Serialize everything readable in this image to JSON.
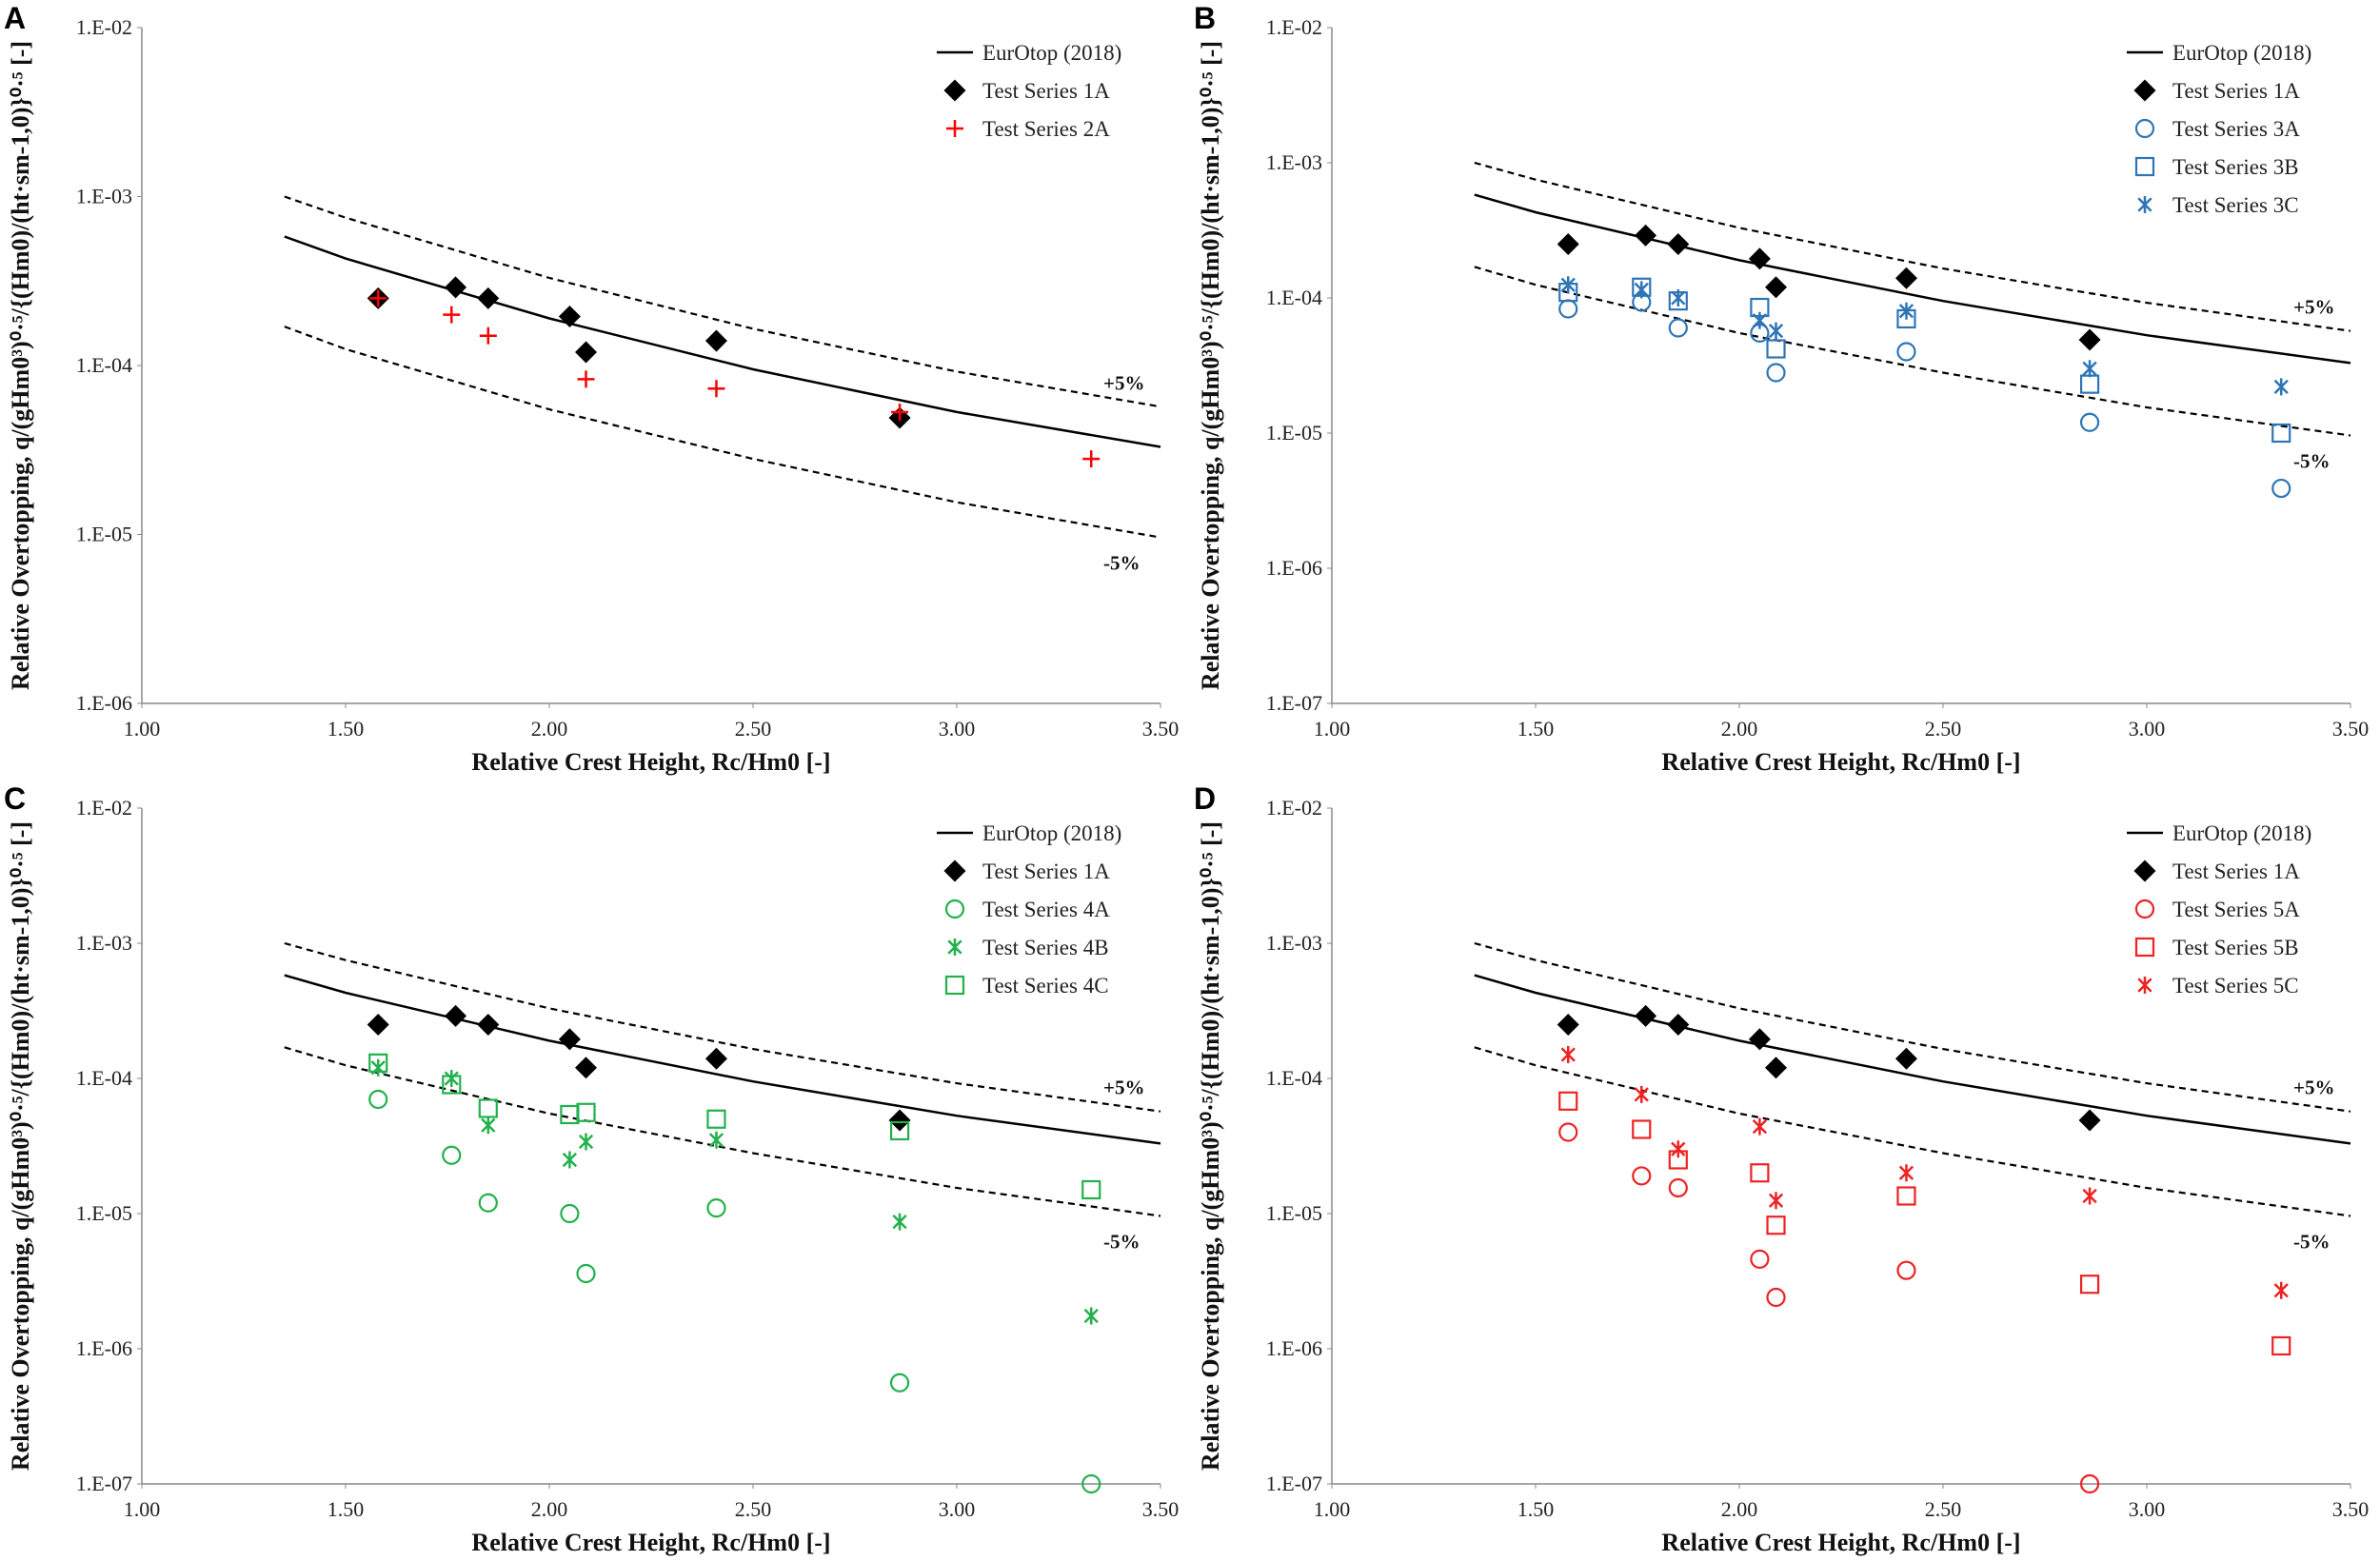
{
  "chart_data": [
    {
      "panel_label": "A",
      "type": "scatter",
      "log_y": true,
      "legend": "upper right",
      "x_label": "Relative Crest Height, Rc/Hm0 [-]",
      "y_label": "Relative Overtopping, q/(gHm0³)⁰·⁵/{(Hm0)/(ht·sm-1,0)}⁰·⁵ [-]",
      "xlim": [
        1.0,
        3.5
      ],
      "xticks": [
        {
          "value": 1.0,
          "label": "1.00"
        },
        {
          "value": 1.5,
          "label": "1.50"
        },
        {
          "value": 2.0,
          "label": "2.00"
        },
        {
          "value": 2.5,
          "label": "2.50"
        },
        {
          "value": 3.0,
          "label": "3.00"
        },
        {
          "value": 3.5,
          "label": "3.50"
        }
      ],
      "ylim": [
        1e-06,
        0.01
      ],
      "yticks": [
        {
          "value": 1e-06,
          "label": "1.E-06"
        },
        {
          "value": 1e-05,
          "label": "1.E-05"
        },
        {
          "value": 0.0001,
          "label": "1.E-04"
        },
        {
          "value": 0.001,
          "label": "1.E-03"
        },
        {
          "value": 0.01,
          "label": "1.E-02"
        }
      ],
      "series": [
        {
          "name": "EurOtop (2018)",
          "color": "#000000",
          "marker": "line",
          "x": [
            1.35,
            1.5,
            2.0,
            2.5,
            3.0,
            3.5
          ],
          "values": [
            0.00058,
            0.00043,
            0.00019,
            9.5e-05,
            5.3e-05,
            3.3e-05
          ]
        },
        {
          "name": "+5%",
          "color": "#000000",
          "marker": "dashed",
          "in_legend": false,
          "x": [
            1.35,
            1.5,
            2.0,
            2.5,
            3.0,
            3.5
          ],
          "values": [
            0.001,
            0.00075,
            0.00033,
            0.000165,
            9.2e-05,
            5.7e-05
          ]
        },
        {
          "name": "-5%",
          "color": "#000000",
          "marker": "dashed",
          "in_legend": false,
          "x": [
            1.35,
            1.5,
            2.0,
            2.5,
            3.0,
            3.5
          ],
          "values": [
            0.00017,
            0.000125,
            5.5e-05,
            2.8e-05,
            1.55e-05,
            9.6e-06
          ]
        },
        {
          "name": "Test Series 1A",
          "color": "#000000",
          "marker": "diamond",
          "x": [
            1.58,
            1.77,
            1.85,
            2.05,
            2.09,
            2.41,
            2.86
          ],
          "values": [
            0.00025,
            0.00029,
            0.00025,
            0.000195,
            0.00012,
            0.00014,
            4.9e-05
          ]
        },
        {
          "name": "Test Series 2A",
          "color": "#ff0000",
          "marker": "plus",
          "x": [
            1.58,
            1.76,
            1.85,
            2.09,
            2.41,
            2.86,
            3.33
          ],
          "values": [
            0.00025,
            0.0002,
            0.00015,
            8.3e-05,
            7.3e-05,
            5.3e-05,
            2.8e-05
          ]
        }
      ]
    },
    {
      "panel_label": "B",
      "type": "scatter",
      "log_y": true,
      "legend": "upper right",
      "x_label": "Relative Crest Height, Rc/Hm0 [-]",
      "y_label": "Relative Overtopping, q/(gHm0³)⁰·⁵/{(Hm0)/(ht·sm-1,0)}⁰·⁵ [-]",
      "xlim": [
        1.0,
        3.5
      ],
      "xticks": [
        {
          "value": 1.0,
          "label": "1.00"
        },
        {
          "value": 1.5,
          "label": "1.50"
        },
        {
          "value": 2.0,
          "label": "2.00"
        },
        {
          "value": 2.5,
          "label": "2.50"
        },
        {
          "value": 3.0,
          "label": "3.00"
        },
        {
          "value": 3.5,
          "label": "3.50"
        }
      ],
      "ylim": [
        1e-07,
        0.01
      ],
      "yticks": [
        {
          "value": 1e-07,
          "label": "1.E-07"
        },
        {
          "value": 1e-06,
          "label": "1.E-06"
        },
        {
          "value": 1e-05,
          "label": "1.E-05"
        },
        {
          "value": 0.0001,
          "label": "1.E-04"
        },
        {
          "value": 0.001,
          "label": "1.E-03"
        },
        {
          "value": 0.01,
          "label": "1.E-02"
        }
      ],
      "series": [
        {
          "name": "EurOtop (2018)",
          "color": "#000000",
          "marker": "line",
          "x": [
            1.35,
            1.5,
            2.0,
            2.5,
            3.0,
            3.5
          ],
          "values": [
            0.00058,
            0.00043,
            0.00019,
            9.5e-05,
            5.3e-05,
            3.3e-05
          ]
        },
        {
          "name": "+5%",
          "color": "#000000",
          "marker": "dashed",
          "in_legend": false,
          "x": [
            1.35,
            1.5,
            2.0,
            2.5,
            3.0,
            3.5
          ],
          "values": [
            0.001,
            0.00075,
            0.00033,
            0.000165,
            9.2e-05,
            5.7e-05
          ]
        },
        {
          "name": "-5%",
          "color": "#000000",
          "marker": "dashed",
          "in_legend": false,
          "x": [
            1.35,
            1.5,
            2.0,
            2.5,
            3.0,
            3.5
          ],
          "values": [
            0.00017,
            0.000125,
            5.5e-05,
            2.8e-05,
            1.55e-05,
            9.6e-06
          ]
        },
        {
          "name": "Test Series 1A",
          "color": "#000000",
          "marker": "diamond",
          "x": [
            1.58,
            1.77,
            1.85,
            2.05,
            2.09,
            2.41,
            2.86
          ],
          "values": [
            0.00025,
            0.00029,
            0.00025,
            0.000195,
            0.00012,
            0.00014,
            4.9e-05
          ]
        },
        {
          "name": "Test Series 3A",
          "color": "#2e75b6",
          "marker": "circle",
          "x": [
            1.58,
            1.76,
            1.85,
            2.05,
            2.09,
            2.41,
            2.86,
            3.33
          ],
          "values": [
            8.3e-05,
            9.3e-05,
            6e-05,
            5.5e-05,
            2.8e-05,
            4e-05,
            1.2e-05,
            3.9e-06
          ]
        },
        {
          "name": "Test Series 3B",
          "color": "#2e75b6",
          "marker": "square",
          "x": [
            1.58,
            1.76,
            1.85,
            2.05,
            2.09,
            2.41,
            2.86,
            3.33
          ],
          "values": [
            0.00011,
            0.00012,
            9.5e-05,
            8.5e-05,
            4.2e-05,
            7e-05,
            2.3e-05,
            1e-05
          ]
        },
        {
          "name": "Test Series 3C",
          "color": "#2e75b6",
          "marker": "asterisk",
          "x": [
            1.58,
            1.76,
            1.85,
            2.05,
            2.09,
            2.41,
            2.86,
            3.33
          ],
          "values": [
            0.000125,
            0.000115,
            0.0001,
            6.8e-05,
            5.7e-05,
            8e-05,
            3e-05,
            2.2e-05
          ]
        }
      ]
    },
    {
      "panel_label": "C",
      "type": "scatter",
      "log_y": true,
      "legend": "upper right",
      "x_label": "Relative Crest Height, Rc/Hm0 [-]",
      "y_label": "Relative Overtopping, q/(gHm0³)⁰·⁵/{(Hm0)/(ht·sm-1,0)}⁰·⁵ [-]",
      "xlim": [
        1.0,
        3.5
      ],
      "xticks": [
        {
          "value": 1.0,
          "label": "1.00"
        },
        {
          "value": 1.5,
          "label": "1.50"
        },
        {
          "value": 2.0,
          "label": "2.00"
        },
        {
          "value": 2.5,
          "label": "2.50"
        },
        {
          "value": 3.0,
          "label": "3.00"
        },
        {
          "value": 3.5,
          "label": "3.50"
        }
      ],
      "ylim": [
        1e-07,
        0.01
      ],
      "yticks": [
        {
          "value": 1e-07,
          "label": "1.E-07"
        },
        {
          "value": 1e-06,
          "label": "1.E-06"
        },
        {
          "value": 1e-05,
          "label": "1.E-05"
        },
        {
          "value": 0.0001,
          "label": "1.E-04"
        },
        {
          "value": 0.001,
          "label": "1.E-03"
        },
        {
          "value": 0.01,
          "label": "1.E-02"
        }
      ],
      "series": [
        {
          "name": "EurOtop (2018)",
          "color": "#000000",
          "marker": "line",
          "x": [
            1.35,
            1.5,
            2.0,
            2.5,
            3.0,
            3.5
          ],
          "values": [
            0.00058,
            0.00043,
            0.00019,
            9.5e-05,
            5.3e-05,
            3.3e-05
          ]
        },
        {
          "name": "+5%",
          "color": "#000000",
          "marker": "dashed",
          "in_legend": false,
          "x": [
            1.35,
            1.5,
            2.0,
            2.5,
            3.0,
            3.5
          ],
          "values": [
            0.001,
            0.00075,
            0.00033,
            0.000165,
            9.2e-05,
            5.7e-05
          ]
        },
        {
          "name": "-5%",
          "color": "#000000",
          "marker": "dashed",
          "in_legend": false,
          "x": [
            1.35,
            1.5,
            2.0,
            2.5,
            3.0,
            3.5
          ],
          "values": [
            0.00017,
            0.000125,
            5.5e-05,
            2.8e-05,
            1.55e-05,
            9.6e-06
          ]
        },
        {
          "name": "Test Series 1A",
          "color": "#000000",
          "marker": "diamond",
          "x": [
            1.58,
            1.77,
            1.85,
            2.05,
            2.09,
            2.41,
            2.86
          ],
          "values": [
            0.00025,
            0.00029,
            0.00025,
            0.000195,
            0.00012,
            0.00014,
            4.9e-05
          ]
        },
        {
          "name": "Test Series 4A",
          "color": "#22b14c",
          "marker": "circle",
          "x": [
            1.58,
            1.76,
            1.85,
            2.05,
            2.09,
            2.41,
            2.86,
            3.33
          ],
          "values": [
            7e-05,
            2.7e-05,
            1.2e-05,
            1e-05,
            3.6e-06,
            1.1e-05,
            5.6e-07,
            1e-07
          ]
        },
        {
          "name": "Test Series 4B",
          "color": "#22b14c",
          "marker": "asterisk",
          "x": [
            1.58,
            1.76,
            1.85,
            2.05,
            2.09,
            2.41,
            2.86,
            3.33
          ],
          "values": [
            0.00012,
            0.0001,
            4.5e-05,
            2.5e-05,
            3.4e-05,
            3.5e-05,
            8.7e-06,
            1.75e-06
          ]
        },
        {
          "name": "Test Series 4C",
          "color": "#22b14c",
          "marker": "square",
          "x": [
            1.58,
            1.76,
            1.85,
            2.05,
            2.09,
            2.41,
            2.86,
            3.33
          ],
          "values": [
            0.00013,
            9e-05,
            6e-05,
            5.4e-05,
            5.6e-05,
            5e-05,
            4.1e-05,
            1.5e-05
          ]
        }
      ]
    },
    {
      "panel_label": "D",
      "type": "scatter",
      "log_y": true,
      "legend": "upper right",
      "x_label": "Relative Crest Height, Rc/Hm0 [-]",
      "y_label": "Relative Overtopping, q/(gHm0³)⁰·⁵/{(Hm0)/(ht·sm-1,0)}⁰·⁵ [-]",
      "xlim": [
        1.0,
        3.5
      ],
      "xticks": [
        {
          "value": 1.0,
          "label": "1.00"
        },
        {
          "value": 1.5,
          "label": "1.50"
        },
        {
          "value": 2.0,
          "label": "2.00"
        },
        {
          "value": 2.5,
          "label": "2.50"
        },
        {
          "value": 3.0,
          "label": "3.00"
        },
        {
          "value": 3.5,
          "label": "3.50"
        }
      ],
      "ylim": [
        1e-07,
        0.01
      ],
      "yticks": [
        {
          "value": 1e-07,
          "label": "1.E-07"
        },
        {
          "value": 1e-06,
          "label": "1.E-06"
        },
        {
          "value": 1e-05,
          "label": "1.E-05"
        },
        {
          "value": 0.0001,
          "label": "1.E-04"
        },
        {
          "value": 0.001,
          "label": "1.E-03"
        },
        {
          "value": 0.01,
          "label": "1.E-02"
        }
      ],
      "series": [
        {
          "name": "EurOtop (2018)",
          "color": "#000000",
          "marker": "line",
          "x": [
            1.35,
            1.5,
            2.0,
            2.5,
            3.0,
            3.5
          ],
          "values": [
            0.00058,
            0.00043,
            0.00019,
            9.5e-05,
            5.3e-05,
            3.3e-05
          ]
        },
        {
          "name": "+5%",
          "color": "#000000",
          "marker": "dashed",
          "in_legend": false,
          "x": [
            1.35,
            1.5,
            2.0,
            2.5,
            3.0,
            3.5
          ],
          "values": [
            0.001,
            0.00075,
            0.00033,
            0.000165,
            9.2e-05,
            5.7e-05
          ]
        },
        {
          "name": "-5%",
          "color": "#000000",
          "marker": "dashed",
          "in_legend": false,
          "x": [
            1.35,
            1.5,
            2.0,
            2.5,
            3.0,
            3.5
          ],
          "values": [
            0.00017,
            0.000125,
            5.5e-05,
            2.8e-05,
            1.55e-05,
            9.6e-06
          ]
        },
        {
          "name": "Test Series 1A",
          "color": "#000000",
          "marker": "diamond",
          "x": [
            1.58,
            1.77,
            1.85,
            2.05,
            2.09,
            2.41,
            2.86
          ],
          "values": [
            0.00025,
            0.00029,
            0.00025,
            0.000195,
            0.00012,
            0.00014,
            4.9e-05
          ]
        },
        {
          "name": "Test Series 5A",
          "color": "#ee2222",
          "marker": "circle",
          "x": [
            1.58,
            1.76,
            1.85,
            2.05,
            2.09,
            2.41,
            2.86
          ],
          "values": [
            4e-05,
            1.9e-05,
            1.55e-05,
            4.6e-06,
            2.4e-06,
            3.8e-06,
            1e-07
          ]
        },
        {
          "name": "Test Series 5B",
          "color": "#ee2222",
          "marker": "square",
          "x": [
            1.58,
            1.76,
            1.85,
            2.05,
            2.09,
            2.41,
            2.86,
            3.33
          ],
          "values": [
            6.8e-05,
            4.2e-05,
            2.5e-05,
            2e-05,
            8.2e-06,
            1.35e-05,
            3e-06,
            1.05e-06
          ]
        },
        {
          "name": "Test Series 5C",
          "color": "#ee2222",
          "marker": "asterisk",
          "x": [
            1.58,
            1.76,
            1.85,
            2.05,
            2.09,
            2.41,
            2.86,
            3.33
          ],
          "values": [
            0.00015,
            7.6e-05,
            3e-05,
            4.4e-05,
            1.25e-05,
            2e-05,
            1.35e-05,
            2.7e-06
          ]
        }
      ]
    }
  ]
}
